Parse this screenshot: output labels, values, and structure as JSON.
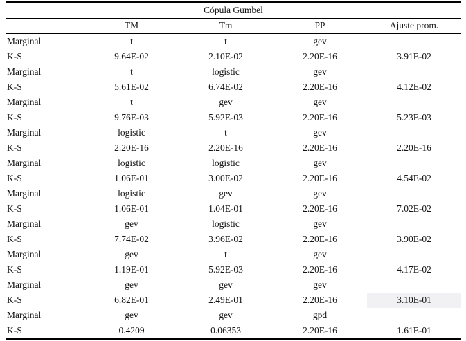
{
  "table": {
    "title": "Cópula Gumbel",
    "row_label_header": "",
    "columns": [
      "TM",
      "Tm",
      "PP",
      "Ajuste prom."
    ],
    "highlight_color": "#f1f1f3",
    "rows": [
      {
        "label": "Marginal",
        "values": [
          "t",
          "t",
          "gev",
          ""
        ]
      },
      {
        "label": "K-S",
        "values": [
          "9.64E-02",
          "2.10E-02",
          "2.20E-16",
          "3.91E-02"
        ]
      },
      {
        "label": "Marginal",
        "values": [
          "t",
          "logistic",
          "gev",
          ""
        ]
      },
      {
        "label": "K-S",
        "values": [
          "5.61E-02",
          "6.74E-02",
          "2.20E-16",
          "4.12E-02"
        ]
      },
      {
        "label": "Marginal",
        "values": [
          "t",
          "gev",
          "gev",
          ""
        ]
      },
      {
        "label": "K-S",
        "values": [
          "9.76E-03",
          "5.92E-03",
          "2.20E-16",
          "5.23E-03"
        ]
      },
      {
        "label": "Marginal",
        "values": [
          "logistic",
          "t",
          "gev",
          ""
        ]
      },
      {
        "label": "K-S",
        "values": [
          "2.20E-16",
          "2.20E-16",
          "2.20E-16",
          "2.20E-16"
        ]
      },
      {
        "label": "Marginal",
        "values": [
          "logistic",
          "logistic",
          "gev",
          ""
        ]
      },
      {
        "label": "K-S",
        "values": [
          "1.06E-01",
          "3.00E-02",
          "2.20E-16",
          "4.54E-02"
        ]
      },
      {
        "label": "Marginal",
        "values": [
          "logistic",
          "gev",
          "gev",
          ""
        ]
      },
      {
        "label": "K-S",
        "values": [
          "1.06E-01",
          "1.04E-01",
          "2.20E-16",
          "7.02E-02"
        ]
      },
      {
        "label": "Marginal",
        "values": [
          "gev",
          "logistic",
          "gev",
          ""
        ]
      },
      {
        "label": "K-S",
        "values": [
          "7.74E-02",
          "3.96E-02",
          "2.20E-16",
          "3.90E-02"
        ]
      },
      {
        "label": "Marginal",
        "values": [
          "gev",
          "t",
          "gev",
          ""
        ]
      },
      {
        "label": "K-S",
        "values": [
          "1.19E-01",
          "5.92E-03",
          "2.20E-16",
          "4.17E-02"
        ]
      },
      {
        "label": "Marginal",
        "values": [
          "gev",
          "gev",
          "gev",
          ""
        ]
      },
      {
        "label": "K-S",
        "values": [
          "6.82E-01",
          "2.49E-01",
          "2.20E-16",
          "3.10E-01"
        ],
        "highlight_col": 3
      },
      {
        "label": "Marginal",
        "values": [
          "gev",
          "gev",
          "gpd",
          ""
        ]
      },
      {
        "label": "K-S",
        "values": [
          "0.4209",
          "0.06353",
          "2.20E-16",
          "1.61E-01"
        ]
      }
    ]
  }
}
